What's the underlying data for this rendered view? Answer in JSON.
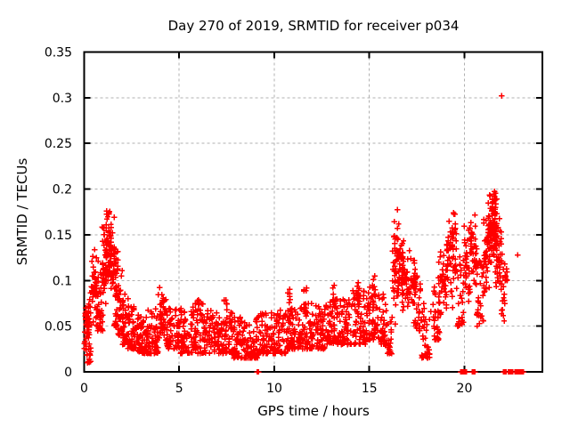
{
  "window": {
    "background_color": "#ffffff"
  },
  "chart_data": {
    "type": "scatter",
    "title": "Day 270 of 2019, SRMTID for receiver p034",
    "xlabel": "GPS time / hours",
    "ylabel": "SRMTID / TECUs",
    "xlim": [
      0,
      24.1
    ],
    "ylim": [
      0,
      0.35
    ],
    "xticks": [
      0,
      5,
      10,
      15,
      20
    ],
    "xtick_labels": [
      "0",
      "5",
      "10",
      "15",
      "20"
    ],
    "yticks": [
      0,
      0.05,
      0.1,
      0.15,
      0.2,
      0.25,
      0.3,
      0.35
    ],
    "ytick_labels": [
      "0",
      "0.05",
      "0.1",
      "0.15",
      "0.2",
      "0.25",
      "0.3",
      "0.35"
    ],
    "grid": true,
    "grid_style": "dashed",
    "legend": "none",
    "marker": "plus",
    "marker_color": "#ff0000",
    "grid_color": "#b0b0b0",
    "axis_color": "#000000",
    "density_bins": [
      [
        0.0,
        0.35,
        0.01,
        0.08,
        40,
        "b"
      ],
      [
        0.05,
        0.3,
        0.035,
        0.075,
        25,
        "c"
      ],
      [
        0.3,
        0.7,
        0.04,
        0.145,
        40,
        "c"
      ],
      [
        0.6,
        1.0,
        0.045,
        0.125,
        40,
        "b"
      ],
      [
        0.95,
        1.2,
        0.06,
        0.165,
        40,
        "c"
      ],
      [
        1.15,
        1.45,
        0.08,
        0.195,
        50,
        "c"
      ],
      [
        1.35,
        1.6,
        0.07,
        0.18,
        40,
        "c"
      ],
      [
        1.55,
        1.8,
        0.05,
        0.145,
        35,
        "b"
      ],
      [
        1.75,
        2.05,
        0.04,
        0.115,
        35,
        "b"
      ],
      [
        2.0,
        2.35,
        0.03,
        0.09,
        40,
        "b"
      ],
      [
        2.3,
        2.7,
        0.025,
        0.075,
        45,
        "b"
      ],
      [
        2.7,
        3.3,
        0.02,
        0.065,
        60,
        "b"
      ],
      [
        3.3,
        3.9,
        0.02,
        0.07,
        60,
        "b"
      ],
      [
        3.9,
        4.35,
        0.03,
        0.095,
        45,
        "c"
      ],
      [
        4.35,
        5.0,
        0.025,
        0.07,
        60,
        "b"
      ],
      [
        5.0,
        5.7,
        0.02,
        0.07,
        62,
        "b"
      ],
      [
        5.7,
        6.4,
        0.02,
        0.075,
        62,
        "b"
      ],
      [
        5.95,
        6.1,
        0.05,
        0.092,
        8,
        "c"
      ],
      [
        6.4,
        7.1,
        0.02,
        0.07,
        62,
        "b"
      ],
      [
        7.1,
        7.8,
        0.02,
        0.065,
        62,
        "b"
      ],
      [
        7.35,
        7.5,
        0.045,
        0.088,
        8,
        "c"
      ],
      [
        7.8,
        8.5,
        0.015,
        0.06,
        62,
        "b"
      ],
      [
        8.5,
        9.2,
        0.015,
        0.06,
        62,
        "b"
      ],
      [
        9.2,
        9.9,
        0.02,
        0.065,
        62,
        "b"
      ],
      [
        9.9,
        10.6,
        0.02,
        0.07,
        62,
        "b"
      ],
      [
        10.6,
        11.3,
        0.025,
        0.07,
        62,
        "b"
      ],
      [
        10.7,
        10.85,
        0.05,
        0.095,
        8,
        "c"
      ],
      [
        11.3,
        12.0,
        0.025,
        0.075,
        62,
        "b"
      ],
      [
        11.55,
        11.7,
        0.055,
        0.1,
        8,
        "c"
      ],
      [
        12.0,
        12.7,
        0.025,
        0.075,
        62,
        "b"
      ],
      [
        12.7,
        13.4,
        0.03,
        0.08,
        62,
        "b"
      ],
      [
        13.05,
        13.2,
        0.06,
        0.105,
        8,
        "c"
      ],
      [
        13.4,
        14.1,
        0.03,
        0.085,
        62,
        "b"
      ],
      [
        14.1,
        14.8,
        0.03,
        0.09,
        60,
        "b"
      ],
      [
        14.35,
        14.5,
        0.06,
        0.11,
        8,
        "c"
      ],
      [
        14.8,
        15.5,
        0.035,
        0.095,
        58,
        "b"
      ],
      [
        15.15,
        15.3,
        0.07,
        0.115,
        8,
        "c"
      ],
      [
        15.5,
        15.9,
        0.03,
        0.085,
        38,
        "b"
      ],
      [
        15.9,
        16.2,
        0.02,
        0.06,
        22,
        "b"
      ],
      [
        16.2,
        16.55,
        0.05,
        0.18,
        45,
        "c"
      ],
      [
        16.45,
        16.8,
        0.07,
        0.155,
        35,
        "c"
      ],
      [
        16.7,
        17.45,
        0.06,
        0.135,
        70,
        "c"
      ],
      [
        17.35,
        17.75,
        0.045,
        0.115,
        30,
        "b"
      ],
      [
        17.75,
        18.25,
        0.015,
        0.085,
        35,
        "b"
      ],
      [
        18.25,
        18.7,
        0.035,
        0.1,
        32,
        "b"
      ],
      [
        18.6,
        19.1,
        0.05,
        0.145,
        38,
        "c"
      ],
      [
        19.05,
        19.4,
        0.06,
        0.175,
        32,
        "c"
      ],
      [
        19.35,
        19.6,
        0.08,
        0.205,
        26,
        "c"
      ],
      [
        19.6,
        19.95,
        0.05,
        0.13,
        30,
        "b"
      ],
      [
        19.95,
        20.3,
        0.07,
        0.165,
        35,
        "c"
      ],
      [
        20.3,
        20.65,
        0.08,
        0.182,
        35,
        "c"
      ],
      [
        20.6,
        21.0,
        0.05,
        0.13,
        30,
        "b"
      ],
      [
        21.0,
        21.3,
        0.08,
        0.18,
        42,
        "c"
      ],
      [
        21.25,
        21.7,
        0.1,
        0.215,
        65,
        "c"
      ],
      [
        21.35,
        21.65,
        0.13,
        0.205,
        45,
        "c"
      ],
      [
        21.65,
        21.95,
        0.08,
        0.17,
        38,
        "c"
      ],
      [
        21.9,
        22.15,
        0.055,
        0.14,
        16,
        "b"
      ],
      [
        22.05,
        22.25,
        0.085,
        0.13,
        10,
        "c"
      ]
    ],
    "outlier_points": [
      [
        21.95,
        0.302
      ],
      [
        22.8,
        0.128
      ]
    ],
    "zero_time_points_x": [
      9.1,
      9.17,
      19.8,
      19.85,
      19.9,
      19.95,
      20.0,
      20.05,
      20.1,
      20.42,
      20.48,
      20.55,
      22.05,
      22.1,
      22.15,
      22.2,
      22.3,
      22.35,
      22.4,
      22.45,
      22.5,
      22.55,
      22.65,
      22.7,
      22.75,
      22.8,
      22.85,
      22.9,
      22.95,
      23.0,
      23.05,
      23.1
    ]
  }
}
